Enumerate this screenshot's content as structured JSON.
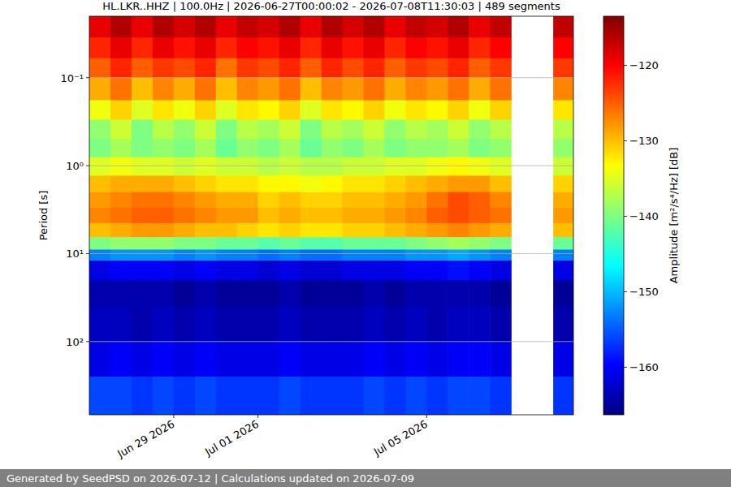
{
  "chart_data": {
    "type": "heatmap",
    "title": "HL.LKR..HHZ | 100.0Hz | 2026-06-27T00:00:02 - 2026-07-08T11:30:03 | 489 segments",
    "ylabel": "Period [s]",
    "footer": "Generated by SeedPSD on 2026-07-12 | Calculations updated on 2026-07-09",
    "log": "y",
    "grid": true,
    "xlim": [
      "2026-06-27T00:00:02",
      "2026-07-08T11:30:03"
    ],
    "xticks": [
      {
        "value": "2026-06-29T00:00:00",
        "label": "Jun 29 2026"
      },
      {
        "value": "2026-07-01T00:00:00",
        "label": "Jul 01 2026"
      },
      {
        "value": "2026-07-05T00:00:00",
        "label": "Jul 05 2026"
      }
    ],
    "ylim": [
      0.02,
      680
    ],
    "yticks": [
      {
        "value": 0.1,
        "label": "10⁻¹"
      },
      {
        "value": 1,
        "label": "10⁰"
      },
      {
        "value": 10,
        "label": "10¹"
      },
      {
        "value": 100,
        "label": "10²"
      }
    ],
    "x_edges": [
      "2026-06-27T00:00:00",
      "2026-06-27T12:00:00",
      "2026-06-28T00:00:00",
      "2026-06-28T12:00:00",
      "2026-06-29T00:00:00",
      "2026-06-29T12:00:00",
      "2026-06-30T00:00:00",
      "2026-06-30T12:00:00",
      "2026-07-01T00:00:00",
      "2026-07-01T12:00:00",
      "2026-07-02T00:00:00",
      "2026-07-02T12:00:00",
      "2026-07-03T00:00:00",
      "2026-07-03T12:00:00",
      "2026-07-04T00:00:00",
      "2026-07-04T12:00:00",
      "2026-07-05T00:00:00",
      "2026-07-05T12:00:00",
      "2026-07-06T00:00:00",
      "2026-07-06T12:00:00",
      "2026-07-07T00:00:00",
      "2026-07-07T12:00:00",
      "2026-07-08T00:00:00",
      "2026-07-08T11:30:03"
    ],
    "y_edges": [
      0.02,
      0.035,
      0.06,
      0.1,
      0.18,
      0.3,
      0.5,
      0.8,
      1.3,
      2,
      3,
      4.5,
      6.5,
      9,
      12,
      20,
      40,
      100,
      250,
      680
    ],
    "cells": [
      [
        -119,
        -116,
        -119,
        -116,
        -118,
        -116,
        -119,
        -117,
        -118,
        -116,
        -119,
        -116,
        -118,
        -116,
        -119,
        -117,
        -118,
        -116,
        -119,
        -117,
        null,
        null,
        -117
      ],
      [
        -122,
        -119,
        -122,
        -119,
        -121,
        -119,
        -122,
        -120,
        -121,
        -119,
        -122,
        -119,
        -121,
        -119,
        -122,
        -120,
        -121,
        -119,
        -122,
        -120,
        null,
        null,
        -120
      ],
      [
        -125,
        -122,
        -125,
        -123,
        -124,
        -122,
        -126,
        -123,
        -124,
        -122,
        -125,
        -122,
        -124,
        -122,
        -125,
        -123,
        -124,
        -122,
        -125,
        -123,
        null,
        null,
        -123
      ],
      [
        -129,
        -126,
        -130,
        -127,
        -129,
        -126,
        -130,
        -127,
        -128,
        -126,
        -130,
        -127,
        -128,
        -126,
        -129,
        -127,
        -128,
        -126,
        -129,
        -126,
        null,
        null,
        -127
      ],
      [
        -134,
        -131,
        -135,
        -132,
        -134,
        -131,
        -135,
        -132,
        -133,
        -131,
        -135,
        -132,
        -133,
        -131,
        -134,
        -132,
        -133,
        -131,
        -134,
        -131,
        null,
        null,
        -132
      ],
      [
        -139,
        -136,
        -140,
        -137,
        -139,
        -136,
        -140,
        -137,
        -138,
        -136,
        -140,
        -137,
        -138,
        -136,
        -139,
        -137,
        -138,
        -136,
        -139,
        -137,
        null,
        null,
        -137
      ],
      [
        -140,
        -138,
        -140,
        -139,
        -140,
        -138,
        -141,
        -139,
        -140,
        -138,
        -141,
        -139,
        -140,
        -138,
        -140,
        -139,
        -139,
        -138,
        -140,
        -139,
        null,
        null,
        -139
      ],
      [
        -135,
        -134,
        -135,
        -135,
        -136,
        -135,
        -136,
        -136,
        -137,
        -136,
        -137,
        -137,
        -136,
        -136,
        -135,
        -135,
        -134,
        -133,
        -134,
        -135,
        null,
        null,
        -136
      ],
      [
        -130,
        -129,
        -129,
        -129,
        -130,
        -131,
        -132,
        -132,
        -133,
        -133,
        -134,
        -133,
        -132,
        -132,
        -131,
        -130,
        -129,
        -128,
        -128,
        -130,
        null,
        null,
        -131
      ],
      [
        -128,
        -127,
        -126,
        -126,
        -127,
        -128,
        -129,
        -129,
        -131,
        -130,
        -131,
        -131,
        -130,
        -130,
        -129,
        -128,
        -126,
        -124,
        -125,
        -127,
        null,
        null,
        -129
      ],
      [
        -127,
        -126,
        -125,
        -125,
        -126,
        -127,
        -128,
        -128,
        -130,
        -129,
        -130,
        -130,
        -129,
        -129,
        -128,
        -127,
        -125,
        -124,
        -125,
        -126,
        null,
        null,
        -128
      ],
      [
        -130,
        -129,
        -128,
        -128,
        -129,
        -130,
        -130,
        -131,
        -132,
        -131,
        -132,
        -132,
        -131,
        -131,
        -130,
        -129,
        -128,
        -127,
        -128,
        -129,
        null,
        null,
        -130
      ],
      [
        -140,
        -139,
        -139,
        -139,
        -140,
        -140,
        -141,
        -141,
        -142,
        -141,
        -142,
        -142,
        -141,
        -141,
        -141,
        -140,
        -139,
        -138,
        -139,
        -140,
        null,
        null,
        -141
      ],
      [
        -153,
        -152,
        -152,
        -152,
        -153,
        -152,
        -153,
        -153,
        -154,
        -153,
        -154,
        -154,
        -153,
        -153,
        -153,
        -152,
        -152,
        -151,
        -152,
        -153,
        null,
        null,
        -153
      ],
      [
        -161,
        -160,
        -160,
        -160,
        -161,
        -160,
        -161,
        -161,
        -162,
        -161,
        -162,
        -162,
        -161,
        -161,
        -161,
        -160,
        -160,
        -159,
        -160,
        -161,
        null,
        null,
        -161
      ],
      [
        -164,
        -164,
        -164,
        -164,
        -165,
        -164,
        -165,
        -165,
        -165,
        -164,
        -165,
        -165,
        -165,
        -164,
        -165,
        -164,
        -164,
        -164,
        -164,
        -165,
        null,
        null,
        -165
      ],
      [
        -163,
        -163,
        -164,
        -163,
        -164,
        -163,
        -164,
        -164,
        -164,
        -163,
        -164,
        -164,
        -164,
        -163,
        -164,
        -163,
        -164,
        -163,
        -163,
        -164,
        null,
        null,
        -164
      ],
      [
        -161,
        -160,
        -161,
        -160,
        -161,
        -160,
        -161,
        -161,
        -161,
        -160,
        -161,
        -161,
        -161,
        -160,
        -161,
        -160,
        -161,
        -160,
        -160,
        -161,
        null,
        null,
        -161
      ],
      [
        -156,
        -156,
        -157,
        -156,
        -157,
        -156,
        -157,
        -157,
        -157,
        -156,
        -157,
        -157,
        -157,
        -156,
        -157,
        -156,
        -157,
        -156,
        -156,
        -157,
        null,
        null,
        -157
      ]
    ],
    "colorbar": {
      "label": "Amplitude [m²/s⁴/Hz] [dB]",
      "range": [
        -166.3,
        -113.5
      ],
      "ticks": [
        {
          "value": -160,
          "label": "−160"
        },
        {
          "value": -150,
          "label": "−150"
        },
        {
          "value": -140,
          "label": "−140"
        },
        {
          "value": -130,
          "label": "−130"
        },
        {
          "value": -120,
          "label": "−120"
        }
      ]
    }
  }
}
